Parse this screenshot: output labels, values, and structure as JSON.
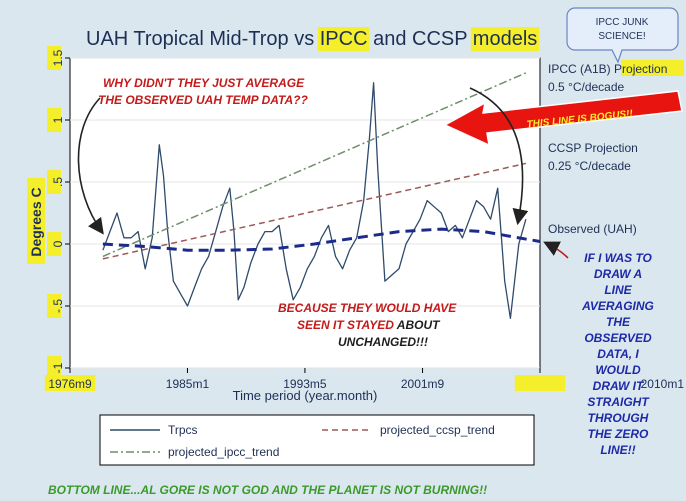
{
  "chart_data": {
    "type": "line",
    "title_parts": [
      {
        "text": "UAH Tropical Mid-Trop vs ",
        "highlight": false
      },
      {
        "text": "IPCC",
        "highlight": true
      },
      {
        "text": " and CCSP ",
        "highlight": false
      },
      {
        "text": "models",
        "highlight": true
      }
    ],
    "xlabel": "Time period (year.month)",
    "ylabel": "Degrees C",
    "xlim": [
      1976.67,
      2010.0
    ],
    "ylim": [
      -1.0,
      1.5
    ],
    "xticks": [
      {
        "value": 1976.67,
        "label": "1976m9",
        "highlight": true
      },
      {
        "value": 1985.0,
        "label": "1985m1",
        "highlight": false
      },
      {
        "value": 1993.33,
        "label": "1993m5",
        "highlight": false
      },
      {
        "value": 2001.67,
        "label": "2001m9",
        "highlight": false
      },
      {
        "value": 2010.0,
        "label": "2010m1",
        "highlight": true
      }
    ],
    "yticks": [
      -1,
      -0.5,
      0,
      0.5,
      1,
      1.5
    ],
    "ytick_labels": [
      "-1",
      "-.5",
      "0",
      ".5",
      "1",
      "1.5"
    ],
    "grid": true,
    "legend": {
      "placement": "bottom"
    },
    "series": [
      {
        "name": "Trpcs",
        "style": "solid",
        "color": "#2f4a6b",
        "x": [
          1979.0,
          1979.5,
          1980.0,
          1980.5,
          1981.0,
          1981.5,
          1982.0,
          1982.5,
          1983.0,
          1983.3,
          1983.6,
          1984.0,
          1984.5,
          1985.0,
          1985.5,
          1986.0,
          1986.5,
          1987.0,
          1987.5,
          1988.0,
          1988.3,
          1988.6,
          1989.0,
          1989.5,
          1990.0,
          1990.5,
          1991.0,
          1991.5,
          1992.0,
          1992.5,
          1993.0,
          1993.5,
          1994.0,
          1994.5,
          1995.0,
          1995.5,
          1996.0,
          1996.5,
          1997.0,
          1997.5,
          1997.9,
          1998.2,
          1998.5,
          1999.0,
          1999.5,
          2000.0,
          2000.5,
          2001.0,
          2001.5,
          2002.0,
          2002.5,
          2003.0,
          2003.5,
          2004.0,
          2004.5,
          2005.0,
          2005.5,
          2006.0,
          2006.5,
          2007.0,
          2007.5,
          2007.9,
          2008.2,
          2008.5,
          2009.0
        ],
        "y": [
          -0.05,
          0.1,
          0.25,
          0.05,
          0.05,
          0.1,
          -0.2,
          0.05,
          0.8,
          0.55,
          0.1,
          -0.3,
          -0.4,
          -0.5,
          -0.35,
          -0.2,
          -0.1,
          0.1,
          0.3,
          0.45,
          0.1,
          -0.45,
          -0.35,
          -0.15,
          0.0,
          0.1,
          0.1,
          0.15,
          -0.2,
          -0.45,
          -0.35,
          -0.2,
          -0.1,
          0.05,
          0.15,
          -0.1,
          -0.2,
          -0.05,
          0.05,
          0.35,
          0.85,
          1.3,
          0.6,
          -0.3,
          -0.25,
          -0.2,
          0.0,
          0.1,
          0.2,
          0.35,
          0.3,
          0.25,
          0.1,
          0.15,
          0.05,
          0.2,
          0.35,
          0.3,
          0.2,
          0.45,
          -0.3,
          -0.6,
          -0.3,
          0.0,
          0.2
        ]
      },
      {
        "name": "projected_ipcc_trend",
        "style": "dashdot",
        "color": "#6f8e6a",
        "x": [
          1979.0,
          2009.0
        ],
        "y": [
          -0.1,
          1.38
        ]
      },
      {
        "name": "projected_ccsp_trend",
        "style": "dash",
        "color": "#9a5a5a",
        "x": [
          1979.0,
          2009.0
        ],
        "y": [
          -0.12,
          0.65
        ]
      },
      {
        "name": "",
        "style": "thick-dash",
        "color": "#1c2a8c",
        "x": [
          1979.0,
          1982.0,
          1985.0,
          1988.0,
          1991.0,
          1994.0,
          1997.0,
          2000.0,
          2003.0,
          2006.0,
          2008.0,
          2010.0
        ],
        "y": [
          0.0,
          -0.02,
          -0.05,
          -0.05,
          -0.04,
          0.0,
          0.05,
          0.1,
          0.12,
          0.1,
          0.06,
          0.02
        ]
      }
    ],
    "right_labels": {
      "ipcc_line1_a": "IPCC (A1B) ",
      "ipcc_line1_b": "Projection",
      "ipcc_line2": "0.5 °C/decade",
      "ccsp_line1": "CCSP Projection",
      "ccsp_line2": "0.25 °C/decade",
      "observed": "Observed (UAH)"
    },
    "annotations": {
      "bubble": [
        "IPCC JUNK",
        "SCIENCE!"
      ],
      "why": [
        "WHY DIDN'T THEY JUST AVERAGE",
        "THE OBSERVED UAH TEMP DATA??"
      ],
      "bogus": "THIS LINE IS BOGUS!!",
      "because_1": "BECAUSE THEY WOULD HAVE",
      "because_2a": "SEEN IT STAYED ",
      "because_2b": "ABOUT",
      "because_3": "UNCHANGED!!!",
      "right_note": [
        "IF I WAS TO",
        "DRAW A",
        "LINE",
        "AVERAGING",
        "THE",
        "OBSERVED",
        "DATA, I",
        "WOULD",
        "DRAW IT",
        "STRAIGHT",
        "THROUGH",
        "THE ZERO",
        "LINE!!"
      ],
      "bottom": "BOTTOM LINE...AL GORE IS NOT GOD AND THE PLANET IS NOT BURNING!!"
    },
    "colors": {
      "highlight": "#f4ef2a",
      "red_text": "#c41a1a",
      "blue_text": "#1d2aa8",
      "green_text": "#3b9a2a",
      "plot_bg": "#ffffff",
      "frame_bg": "#dbe7ef"
    }
  }
}
